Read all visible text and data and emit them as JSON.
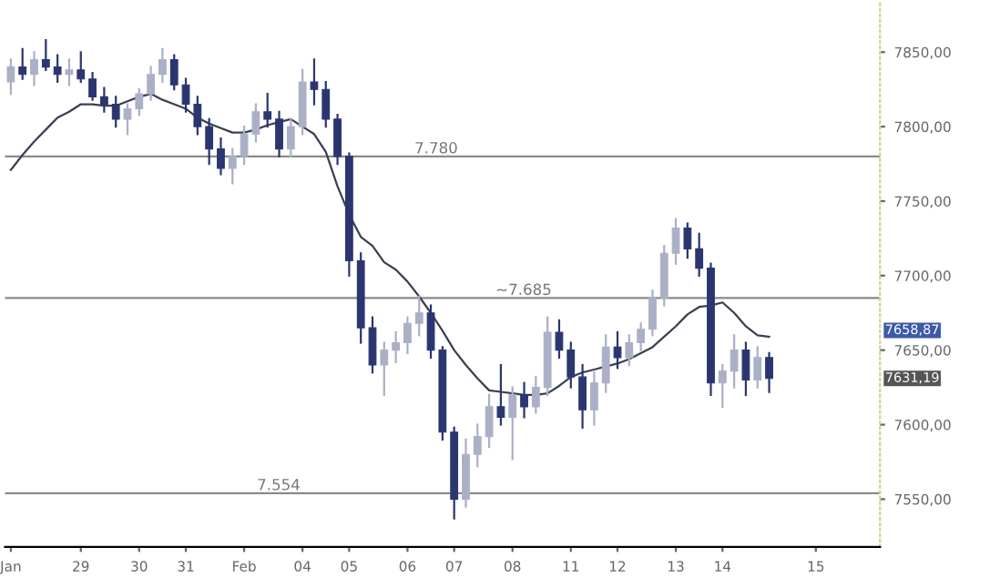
{
  "chart_data": {
    "type": "candlestick",
    "categories": [
      "Jan",
      null,
      null,
      null,
      null,
      null,
      "29",
      null,
      null,
      null,
      null,
      "30",
      null,
      null,
      null,
      "31",
      null,
      null,
      null,
      null,
      "Feb",
      null,
      null,
      null,
      null,
      "04",
      null,
      null,
      null,
      "05",
      null,
      null,
      null,
      null,
      "06",
      null,
      null,
      null,
      "07",
      null,
      null,
      null,
      null,
      "08",
      null,
      null,
      null,
      null,
      "11",
      null,
      null,
      null,
      "12",
      null,
      null,
      null,
      null,
      "13",
      null,
      null,
      null,
      "14",
      null,
      null,
      null,
      null,
      null,
      null,
      null,
      "15",
      null,
      null,
      null,
      null,
      null
    ],
    "ohlc": [
      [
        7830,
        7845,
        7822,
        7840
      ],
      [
        7840,
        7852,
        7832,
        7835
      ],
      [
        7835,
        7850,
        7828,
        7845
      ],
      [
        7845,
        7858,
        7838,
        7840
      ],
      [
        7840,
        7848,
        7830,
        7835
      ],
      [
        7835,
        7845,
        7828,
        7838
      ],
      [
        7838,
        7850,
        7830,
        7832
      ],
      [
        7832,
        7836,
        7818,
        7820
      ],
      [
        7820,
        7826,
        7810,
        7815
      ],
      [
        7815,
        7820,
        7800,
        7805
      ],
      [
        7805,
        7815,
        7795,
        7812
      ],
      [
        7812,
        7825,
        7808,
        7822
      ],
      [
        7822,
        7840,
        7818,
        7835
      ],
      [
        7835,
        7852,
        7830,
        7845
      ],
      [
        7845,
        7848,
        7825,
        7828
      ],
      [
        7828,
        7832,
        7810,
        7815
      ],
      [
        7815,
        7820,
        7795,
        7800
      ],
      [
        7800,
        7805,
        7775,
        7785
      ],
      [
        7785,
        7792,
        7768,
        7772
      ],
      [
        7772,
        7785,
        7762,
        7780
      ],
      [
        7780,
        7800,
        7775,
        7795
      ],
      [
        7795,
        7815,
        7790,
        7810
      ],
      [
        7810,
        7822,
        7800,
        7805
      ],
      [
        7805,
        7810,
        7780,
        7785
      ],
      [
        7785,
        7805,
        7780,
        7800
      ],
      [
        7800,
        7838,
        7795,
        7830
      ],
      [
        7830,
        7845,
        7815,
        7825
      ],
      [
        7825,
        7830,
        7800,
        7805
      ],
      [
        7805,
        7808,
        7775,
        7780
      ],
      [
        7780,
        7782,
        7700,
        7710
      ],
      [
        7710,
        7715,
        7655,
        7665
      ],
      [
        7665,
        7672,
        7635,
        7640
      ],
      [
        7640,
        7655,
        7620,
        7650
      ],
      [
        7650,
        7662,
        7642,
        7655
      ],
      [
        7655,
        7672,
        7648,
        7668
      ],
      [
        7668,
        7686,
        7660,
        7675
      ],
      [
        7675,
        7680,
        7645,
        7650
      ],
      [
        7650,
        7652,
        7590,
        7595
      ],
      [
        7595,
        7598,
        7537,
        7550
      ],
      [
        7550,
        7590,
        7545,
        7580
      ],
      [
        7580,
        7600,
        7572,
        7592
      ],
      [
        7592,
        7620,
        7585,
        7612
      ],
      [
        7612,
        7640,
        7600,
        7605
      ],
      [
        7605,
        7625,
        7577,
        7620
      ],
      [
        7620,
        7628,
        7605,
        7612
      ],
      [
        7612,
        7632,
        7608,
        7625
      ],
      [
        7625,
        7672,
        7620,
        7662
      ],
      [
        7662,
        7670,
        7645,
        7650
      ],
      [
        7650,
        7655,
        7625,
        7632
      ],
      [
        7632,
        7640,
        7598,
        7610
      ],
      [
        7610,
        7635,
        7600,
        7628
      ],
      [
        7628,
        7660,
        7622,
        7652
      ],
      [
        7652,
        7662,
        7638,
        7645
      ],
      [
        7645,
        7660,
        7640,
        7655
      ],
      [
        7655,
        7668,
        7650,
        7664
      ],
      [
        7664,
        7690,
        7660,
        7685
      ],
      [
        7685,
        7720,
        7680,
        7715
      ],
      [
        7715,
        7738,
        7708,
        7732
      ],
      [
        7732,
        7735,
        7712,
        7718
      ],
      [
        7718,
        7728,
        7700,
        7705
      ],
      [
        7705,
        7708,
        7620,
        7628
      ],
      [
        7628,
        7640,
        7612,
        7636
      ],
      [
        7636,
        7660,
        7625,
        7650
      ],
      [
        7650,
        7655,
        7620,
        7630
      ],
      [
        7630,
        7652,
        7625,
        7645
      ],
      [
        7645,
        7648,
        7622,
        7631
      ],
      null,
      null,
      null,
      null,
      null,
      null,
      null,
      null,
      null
    ],
    "colors": [
      "#aab0c6",
      "#2b3670",
      "#aab0c6",
      "#2b3670",
      "#2b3670",
      "#aab0c6",
      "#2b3670",
      "#2b3670",
      "#2b3670",
      "#2b3670",
      "#aab0c6",
      "#aab0c6",
      "#aab0c6",
      "#aab0c6",
      "#2b3670",
      "#2b3670",
      "#2b3670",
      "#2b3670",
      "#2b3670",
      "#aab0c6",
      "#aab0c6",
      "#aab0c6",
      "#2b3670",
      "#2b3670",
      "#aab0c6",
      "#aab0c6",
      "#2b3670",
      "#2b3670",
      "#2b3670",
      "#2b3670",
      "#2b3670",
      "#2b3670",
      "#aab0c6",
      "#aab0c6",
      "#aab0c6",
      "#aab0c6",
      "#2b3670",
      "#2b3670",
      "#2b3670",
      "#aab0c6",
      "#aab0c6",
      "#aab0c6",
      "#2b3670",
      "#aab0c6",
      "#2b3670",
      "#aab0c6",
      "#aab0c6",
      "#2b3670",
      "#2b3670",
      "#2b3670",
      "#aab0c6",
      "#aab0c6",
      "#2b3670",
      "#aab0c6",
      "#aab0c6",
      "#aab0c6",
      "#aab0c6",
      "#aab0c6",
      "#2b3670",
      "#2b3670",
      "#2b3670",
      "#aab0c6",
      "#aab0c6",
      "#2b3670",
      "#aab0c6",
      "#2b3670",
      null,
      null,
      null,
      null,
      null,
      null,
      null,
      null,
      null
    ],
    "series": [
      {
        "type": "line",
        "color": "#3a3f52",
        "values": [
          7771,
          7781,
          7790,
          7798,
          7806,
          7810,
          7815,
          7815,
          7814,
          7814,
          7817,
          7820,
          7822,
          7818,
          7815,
          7812,
          7806,
          7802,
          7799,
          7796,
          7796,
          7798,
          7801,
          7803,
          7805,
          7800,
          7795,
          7783,
          7760,
          7741,
          7726,
          7720,
          7709,
          7704,
          7696,
          7686,
          7675,
          7663,
          7650,
          7640,
          7631,
          7623,
          7622,
          7621,
          7620,
          7620,
          7621,
          7626,
          7632,
          7635,
          7637,
          7639,
          7641,
          7644,
          7648,
          7652,
          7659,
          7666,
          7674,
          7679,
          7680,
          7682,
          7675,
          7666,
          7660,
          7659,
          null,
          null,
          null,
          null,
          null,
          null,
          null,
          null,
          null
        ]
      }
    ],
    "ylim": [
      7518,
      7883
    ],
    "yticks": [
      {
        "value": 7550,
        "label": "7550,00"
      },
      {
        "value": 7600,
        "label": "7600,00"
      },
      {
        "value": 7650,
        "label": "7650,00"
      },
      {
        "value": 7700,
        "label": "7700,00"
      },
      {
        "value": 7750,
        "label": "7750,00"
      },
      {
        "value": 7800,
        "label": "7800,00"
      },
      {
        "value": 7850,
        "label": "7850,00"
      }
    ],
    "ref_lines": [
      {
        "axis": "y",
        "value": 7780,
        "label": "7.780",
        "color": "#8a8a8a"
      },
      {
        "axis": "y",
        "value": 7685,
        "label": "~7.685",
        "color": "#8a8a8a"
      },
      {
        "axis": "y",
        "value": 7554,
        "label": "7.554",
        "color": "#8a8a8a"
      }
    ],
    "annotations": [
      "7658,87",
      "7631,19"
    ],
    "grid": false
  }
}
